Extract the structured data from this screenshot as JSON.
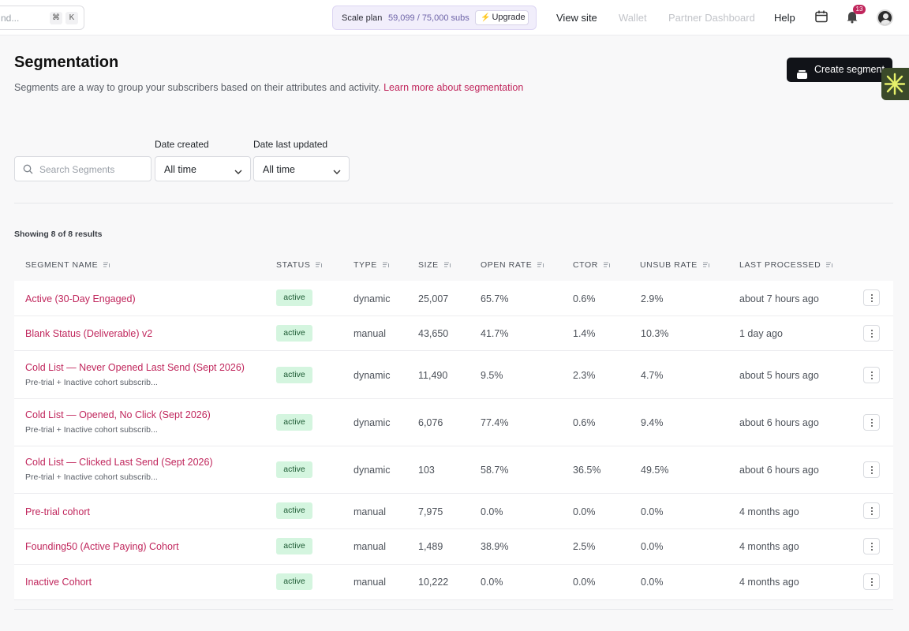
{
  "topbar": {
    "search_placeholder": "nd...",
    "kbd_cmd": "⌘",
    "kbd_k": "K",
    "plan_name": "Scale plan",
    "plan_subs": "59,099 / 75,000 subs",
    "upgrade_label": "Upgrade",
    "links": {
      "view_site": "View site",
      "wallet": "Wallet",
      "partner_dashboard": "Partner Dashboard",
      "help": "Help"
    },
    "notification_count": "13"
  },
  "header": {
    "title": "Segmentation",
    "description": "Segments are a way to group your subscribers based on their attributes and activity.",
    "learn_more": "Learn more about segmentation",
    "create_button": "Create segment"
  },
  "filters": {
    "search_placeholder": "Search Segments",
    "date_created_label": "Date created",
    "date_created_value": "All time",
    "date_updated_label": "Date last updated",
    "date_updated_value": "All time"
  },
  "results_text": "Showing 8 of 8 results",
  "table": {
    "columns": [
      "SEGMENT NAME",
      "STATUS",
      "TYPE",
      "SIZE",
      "OPEN RATE",
      "CTOR",
      "UNSUB RATE",
      "LAST PROCESSED"
    ],
    "rows": [
      {
        "name": "Active (30-Day Engaged)",
        "desc": "",
        "status": "active",
        "type": "dynamic",
        "size": "25,007",
        "open_rate": "65.7%",
        "ctor": "0.6%",
        "unsub_rate": "2.9%",
        "last_processed": "about 7 hours ago"
      },
      {
        "name": "Blank Status (Deliverable) v2",
        "desc": "",
        "status": "active",
        "type": "manual",
        "size": "43,650",
        "open_rate": "41.7%",
        "ctor": "1.4%",
        "unsub_rate": "10.3%",
        "last_processed": "1 day ago"
      },
      {
        "name": "Cold List — Never Opened Last Send (Sept 2026)",
        "desc": "Pre-trial + Inactive cohort subscrib...",
        "status": "active",
        "type": "dynamic",
        "size": "11,490",
        "open_rate": "9.5%",
        "ctor": "2.3%",
        "unsub_rate": "4.7%",
        "last_processed": "about 5 hours ago"
      },
      {
        "name": "Cold List — Opened, No Click (Sept 2026)",
        "desc": "Pre-trial + Inactive cohort subscrib...",
        "status": "active",
        "type": "dynamic",
        "size": "6,076",
        "open_rate": "77.4%",
        "ctor": "0.6%",
        "unsub_rate": "9.4%",
        "last_processed": "about 6 hours ago"
      },
      {
        "name": "Cold List — Clicked Last Send (Sept 2026)",
        "desc": "Pre-trial + Inactive cohort subscrib...",
        "status": "active",
        "type": "dynamic",
        "size": "103",
        "open_rate": "58.7%",
        "ctor": "36.5%",
        "unsub_rate": "49.5%",
        "last_processed": "about 6 hours ago"
      },
      {
        "name": "Pre-trial cohort",
        "desc": "",
        "status": "active",
        "type": "manual",
        "size": "7,975",
        "open_rate": "0.0%",
        "ctor": "0.0%",
        "unsub_rate": "0.0%",
        "last_processed": "4 months ago"
      },
      {
        "name": "Founding50 (Active Paying) Cohort",
        "desc": "",
        "status": "active",
        "type": "manual",
        "size": "1,489",
        "open_rate": "38.9%",
        "ctor": "2.5%",
        "unsub_rate": "0.0%",
        "last_processed": "4 months ago"
      },
      {
        "name": "Inactive Cohort",
        "desc": "",
        "status": "active",
        "type": "manual",
        "size": "10,222",
        "open_rate": "0.0%",
        "ctor": "0.0%",
        "unsub_rate": "0.0%",
        "last_processed": "4 months ago"
      }
    ]
  },
  "colors": {
    "accent": "#c0265c",
    "badge_bg": "#d4f5df",
    "badge_text": "#1c5a33",
    "primary_button": "#111318"
  }
}
